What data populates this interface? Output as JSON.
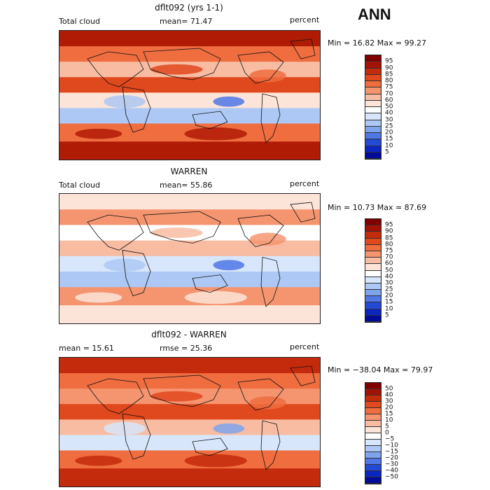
{
  "season": "ANN",
  "panels": [
    {
      "title": "dflt092 (yrs 1-1)",
      "left": "Total cloud",
      "middle": "mean=  71.47",
      "units": "percent",
      "minmax": "Min =  16.82 Max =  99.27",
      "colorbar": {
        "labels": [
          "95",
          "90",
          "85",
          "80",
          "75",
          "70",
          "60",
          "50",
          "40",
          "30",
          "25",
          "20",
          "15",
          "10",
          "5"
        ],
        "colors": [
          "#800000",
          "#a31205",
          "#c42a0c",
          "#e0481d",
          "#ef6d3f",
          "#f49570",
          "#f8bca2",
          "#fde4d8",
          "#ffffff",
          "#d7e6fb",
          "#adc8f5",
          "#7fa4ee",
          "#4f77e6",
          "#2349d7",
          "#0a25c2",
          "#000c98"
        ]
      },
      "field_colors": [
        "#b01b06",
        "#e0481d",
        "#ef6d3f",
        "#f8bca2",
        "#fde4d8",
        "#adc8f5",
        "#4f77e6"
      ]
    },
    {
      "title": "WARREN",
      "left": "Total cloud",
      "middle": "mean=  55.86",
      "units": "percent",
      "minmax": "Min =  10.73 Max =  87.69",
      "colorbar": {
        "labels": [
          "95",
          "90",
          "85",
          "80",
          "75",
          "70",
          "60",
          "50",
          "40",
          "30",
          "25",
          "20",
          "15",
          "10",
          "5"
        ],
        "colors": [
          "#800000",
          "#a31205",
          "#c42a0c",
          "#e0481d",
          "#ef6d3f",
          "#f49570",
          "#f8bca2",
          "#fde4d8",
          "#ffffff",
          "#d7e6fb",
          "#adc8f5",
          "#7fa4ee",
          "#4f77e6",
          "#2349d7",
          "#0a25c2",
          "#000c98"
        ]
      },
      "field_colors": [
        "#fde4d8",
        "#f8bca2",
        "#f49570",
        "#ffffff",
        "#d7e6fb",
        "#adc8f5",
        "#4f77e6"
      ]
    },
    {
      "title": "dflt092 - WARREN",
      "left": "mean =  15.61",
      "middle": "rmse =  25.36",
      "units": "percent",
      "minmax": "Min = −38.04  Max =  79.97",
      "colorbar": {
        "labels": [
          "50",
          "40",
          "30",
          "20",
          "15",
          "10",
          "5",
          "0",
          "−5",
          "−10",
          "−15",
          "−20",
          "−30",
          "−40",
          "−50"
        ],
        "colors": [
          "#800000",
          "#a31205",
          "#c42a0c",
          "#e0481d",
          "#ef6d3f",
          "#f49570",
          "#f8bca2",
          "#fde4d8",
          "#ffffff",
          "#d7e6fb",
          "#adc8f5",
          "#7fa4ee",
          "#4f77e6",
          "#2349d7",
          "#0a25c2",
          "#000c98"
        ]
      },
      "field_colors": [
        "#c42a0c",
        "#e0481d",
        "#ef6d3f",
        "#f49570",
        "#f8bca2",
        "#d7e6fb",
        "#7fa4ee"
      ]
    }
  ],
  "chart_data": [
    {
      "type": "heatmap",
      "title": "dflt092 (yrs 1-1)",
      "field": "Total cloud",
      "units": "percent",
      "mean": 71.47,
      "min": 16.82,
      "max": 99.27,
      "contour_levels": [
        5,
        10,
        15,
        20,
        25,
        30,
        40,
        50,
        60,
        70,
        75,
        80,
        85,
        90,
        95
      ]
    },
    {
      "type": "heatmap",
      "title": "WARREN",
      "field": "Total cloud",
      "units": "percent",
      "mean": 55.86,
      "min": 10.73,
      "max": 87.69,
      "contour_levels": [
        5,
        10,
        15,
        20,
        25,
        30,
        40,
        50,
        60,
        70,
        75,
        80,
        85,
        90,
        95
      ]
    },
    {
      "type": "heatmap",
      "title": "dflt092 - WARREN",
      "units": "percent",
      "mean": 15.61,
      "rmse": 25.36,
      "min": -38.04,
      "max": 79.97,
      "contour_levels": [
        -50,
        -40,
        -30,
        -20,
        -15,
        -10,
        -5,
        0,
        5,
        10,
        15,
        20,
        30,
        40,
        50
      ]
    }
  ]
}
